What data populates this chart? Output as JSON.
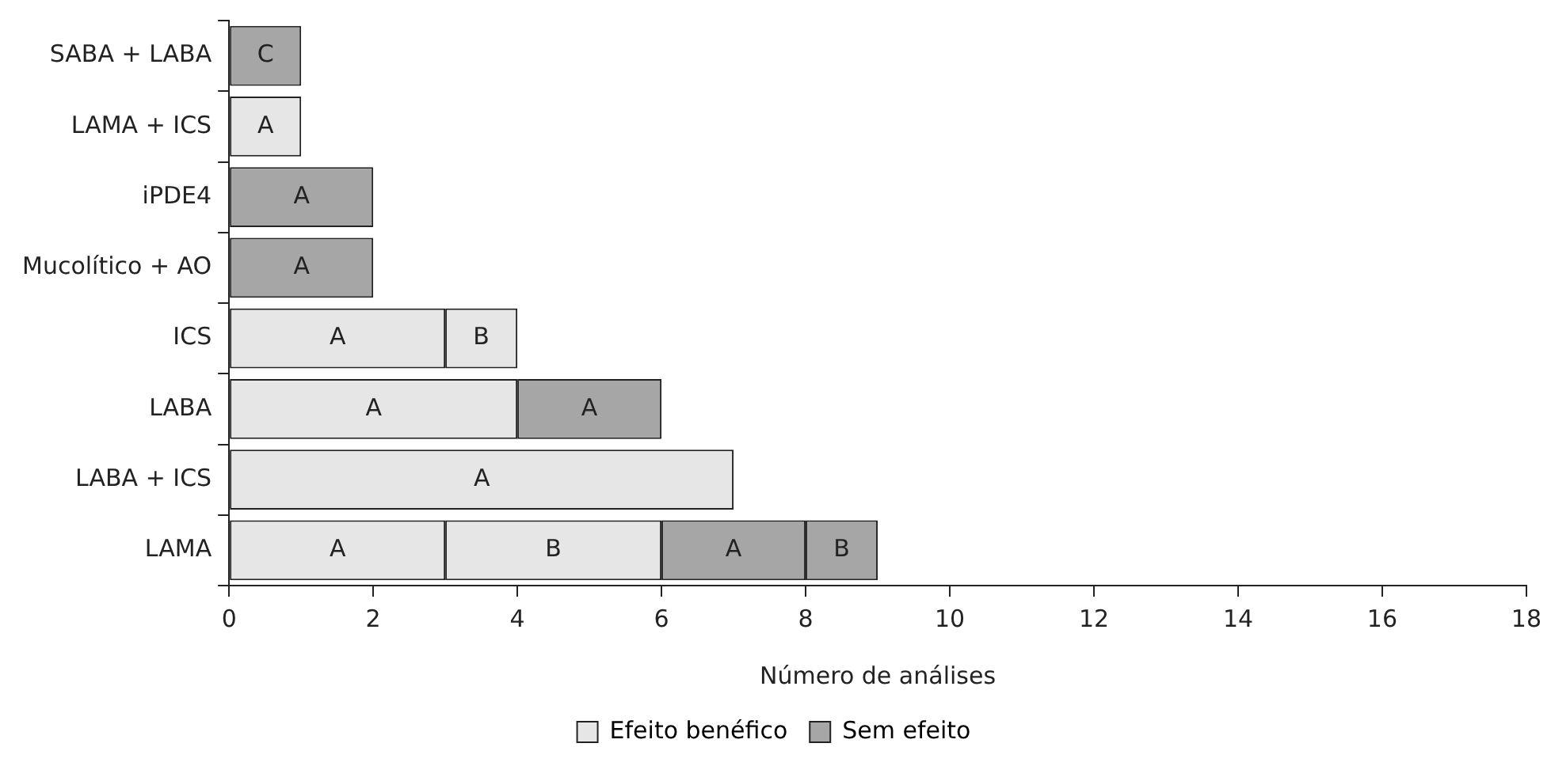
{
  "chart_data": {
    "type": "bar",
    "orientation": "horizontal",
    "stacked": true,
    "xlabel": "Número de análises",
    "categories": [
      "SABA + LABA",
      "LAMA + ICS",
      "iPDE4",
      "Mucolítico + AO",
      "ICS",
      "LABA",
      "LABA + ICS",
      "LAMA"
    ],
    "series": [
      {
        "name": "Efeito benéfico",
        "color": "#e6e6e6",
        "values": [
          null,
          1,
          null,
          null,
          3,
          4,
          7,
          3
        ],
        "value_labels": [
          null,
          "A",
          null,
          null,
          "A",
          "A",
          "A",
          "A"
        ]
      },
      {
        "color": "#e6e6e6",
        "values": [
          null,
          null,
          null,
          null,
          1,
          null,
          null,
          3
        ],
        "value_labels": [
          null,
          null,
          null,
          null,
          "B",
          null,
          null,
          "B"
        ]
      },
      {
        "name": "Sem efeito",
        "color": "#a6a6a6",
        "values": [
          1,
          null,
          2,
          2,
          null,
          2,
          null,
          2
        ],
        "value_labels": [
          "C",
          null,
          "A",
          "A",
          null,
          "A",
          null,
          "A"
        ]
      },
      {
        "color": "#a6a6a6",
        "values": [
          null,
          null,
          null,
          null,
          null,
          null,
          null,
          1
        ],
        "value_labels": [
          null,
          null,
          null,
          null,
          null,
          null,
          null,
          "B"
        ]
      }
    ],
    "xlim": [
      0,
      18
    ],
    "xticks": [
      0,
      2,
      4,
      6,
      8,
      10,
      12,
      14,
      16,
      18
    ],
    "grid": false,
    "legend": "bottom"
  }
}
